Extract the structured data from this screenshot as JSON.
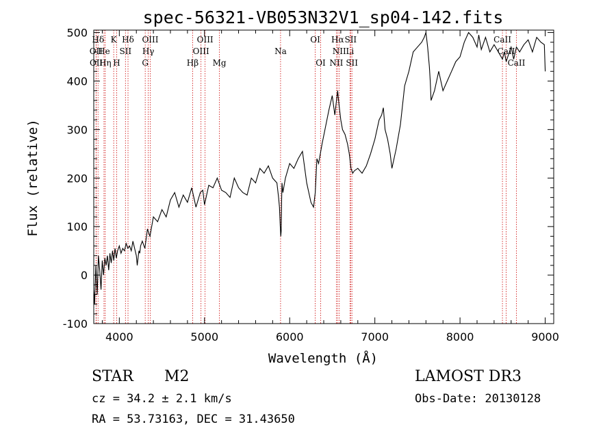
{
  "chart_data": {
    "type": "line",
    "title": "spec-56321-VB053N32V1_sp04-142.fits",
    "xlabel": "Wavelength (Å)",
    "ylabel": "Flux (relative)",
    "xlim": [
      3700,
      9100
    ],
    "ylim": [
      -100,
      505
    ],
    "xticks": [
      4000,
      5000,
      6000,
      7000,
      8000,
      9000
    ],
    "yticks": [
      -100,
      0,
      100,
      200,
      300,
      400,
      500
    ],
    "grid": false,
    "series": [
      {
        "name": "flux",
        "x": [
          3700,
          3710,
          3725,
          3740,
          3755,
          3770,
          3785,
          3800,
          3815,
          3830,
          3845,
          3860,
          3875,
          3890,
          3905,
          3920,
          3935,
          3950,
          3965,
          3980,
          4000,
          4020,
          4040,
          4060,
          4080,
          4100,
          4120,
          4140,
          4160,
          4180,
          4200,
          4210,
          4220,
          4230,
          4240,
          4250,
          4270,
          4300,
          4330,
          4360,
          4400,
          4450,
          4500,
          4550,
          4600,
          4650,
          4700,
          4750,
          4800,
          4850,
          4900,
          4950,
          4980,
          5000,
          5050,
          5100,
          5150,
          5200,
          5250,
          5300,
          5350,
          5400,
          5450,
          5500,
          5550,
          5600,
          5650,
          5700,
          5750,
          5800,
          5850,
          5870,
          5880,
          5890,
          5895,
          5900,
          5905,
          5910,
          5920,
          5950,
          6000,
          6050,
          6100,
          6150,
          6200,
          6250,
          6280,
          6300,
          6320,
          6340,
          6380,
          6420,
          6460,
          6500,
          6530,
          6563,
          6580,
          6600,
          6620,
          6650,
          6680,
          6700,
          6710,
          6720,
          6740,
          6760,
          6800,
          6850,
          6900,
          6950,
          7000,
          7050,
          7080,
          7100,
          7120,
          7150,
          7180,
          7200,
          7250,
          7300,
          7350,
          7400,
          7450,
          7500,
          7550,
          7580,
          7600,
          7620,
          7640,
          7650,
          7660,
          7680,
          7700,
          7750,
          7800,
          7850,
          7900,
          7950,
          8000,
          8050,
          8100,
          8150,
          8200,
          8220,
          8250,
          8300,
          8350,
          8400,
          8450,
          8498,
          8520,
          8542,
          8570,
          8600,
          8630,
          8662,
          8700,
          8750,
          8800,
          8850,
          8900,
          8950,
          8990,
          9000
        ],
        "values": [
          -30,
          -60,
          20,
          -40,
          40,
          10,
          -30,
          30,
          0,
          35,
          20,
          40,
          10,
          45,
          25,
          50,
          30,
          55,
          35,
          50,
          60,
          45,
          55,
          50,
          65,
          55,
          60,
          50,
          70,
          55,
          40,
          20,
          35,
          50,
          45,
          60,
          70,
          55,
          95,
          80,
          120,
          110,
          135,
          120,
          155,
          170,
          140,
          165,
          150,
          180,
          140,
          170,
          175,
          145,
          185,
          180,
          200,
          175,
          170,
          160,
          200,
          180,
          170,
          165,
          200,
          190,
          220,
          210,
          225,
          200,
          190,
          160,
          140,
          100,
          80,
          90,
          150,
          190,
          170,
          200,
          230,
          220,
          240,
          255,
          190,
          150,
          140,
          170,
          240,
          230,
          270,
          305,
          340,
          370,
          330,
          380,
          350,
          320,
          300,
          290,
          270,
          250,
          235,
          220,
          210,
          215,
          220,
          210,
          225,
          250,
          280,
          320,
          330,
          345,
          300,
          280,
          250,
          220,
          260,
          310,
          390,
          420,
          460,
          470,
          480,
          490,
          500,
          470,
          430,
          400,
          360,
          370,
          380,
          420,
          380,
          400,
          420,
          440,
          450,
          480,
          500,
          490,
          470,
          495,
          465,
          490,
          460,
          475,
          460,
          445,
          460,
          440,
          455,
          470,
          445,
          470,
          460,
          475,
          485,
          460,
          490,
          480,
          475,
          420
        ]
      }
    ],
    "lines": [
      {
        "label": "Hδ",
        "x": 3750,
        "row": 1
      },
      {
        "label": "K",
        "x": 3934,
        "row": 1
      },
      {
        "label": "Hδ",
        "x": 4102,
        "row": 1
      },
      {
        "label": "OIII",
        "x": 4363,
        "row": 1
      },
      {
        "label": "OIII",
        "x": 5007,
        "row": 1
      },
      {
        "label": "OI",
        "x": 6300,
        "row": 1
      },
      {
        "label": "Hα",
        "x": 6563,
        "row": 1
      },
      {
        "label": "SII",
        "x": 6716,
        "row": 1
      },
      {
        "label": "CaII",
        "x": 8498,
        "row": 1
      },
      {
        "label": "OII",
        "x": 3727,
        "row": 2
      },
      {
        "label": "He",
        "x": 3820,
        "row": 2
      },
      {
        "label": "SII",
        "x": 4072,
        "row": 2
      },
      {
        "label": "Hγ",
        "x": 4340,
        "row": 2
      },
      {
        "label": "OIII",
        "x": 4959,
        "row": 2
      },
      {
        "label": "Na",
        "x": 5893,
        "row": 2
      },
      {
        "label": "NII",
        "x": 6583,
        "row": 2
      },
      {
        "label": "Li",
        "x": 6708,
        "row": 2
      },
      {
        "label": "CaII",
        "x": 8542,
        "row": 2
      },
      {
        "label": "OII",
        "x": 3729,
        "row": 3
      },
      {
        "label": "Hη",
        "x": 3835,
        "row": 3
      },
      {
        "label": "H",
        "x": 3969,
        "row": 3
      },
      {
        "label": "G",
        "x": 4304,
        "row": 3
      },
      {
        "label": "Hβ",
        "x": 4861,
        "row": 3
      },
      {
        "label": "Mg",
        "x": 5175,
        "row": 3
      },
      {
        "label": "OI",
        "x": 6364,
        "row": 3
      },
      {
        "label": "NII",
        "x": 6548,
        "row": 3
      },
      {
        "label": "SII",
        "x": 6731,
        "row": 3
      },
      {
        "label": "CaII",
        "x": 8662,
        "row": 3
      }
    ]
  },
  "info": {
    "object_type": "STAR",
    "subclass": "M2",
    "cz": "cz = 34.2 ± 2.1 km/s",
    "coords": "RA =  53.73163, DEC =  31.43650",
    "survey": "LAMOST DR3",
    "obs_date": "Obs-Date: 20130128"
  },
  "colors": {
    "line_marker": "#cc0000",
    "spectrum": "#000000"
  }
}
